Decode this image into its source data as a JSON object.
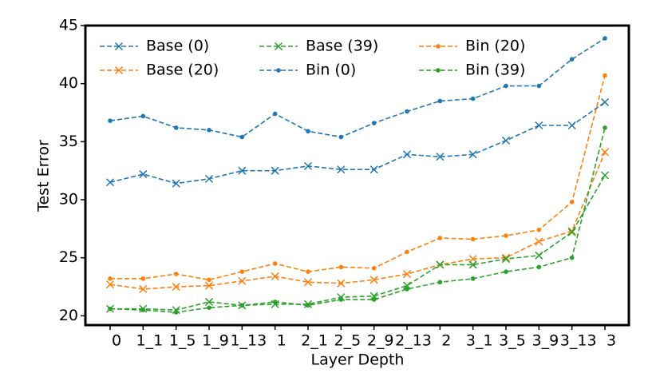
{
  "chart_data": {
    "type": "line",
    "x_label": "Layer Depth",
    "y_label": "Test Error",
    "categories": [
      "0",
      "1_1",
      "1_5",
      "1_9",
      "1_13",
      "1",
      "2_1",
      "2_5",
      "2_9",
      "2_13",
      "2",
      "3_1",
      "3_5",
      "3_9",
      "3_13",
      "3"
    ],
    "ylim": [
      19.2,
      45
    ],
    "yticks": [
      20,
      25,
      30,
      35,
      40,
      45
    ],
    "legend": "upper left",
    "series": [
      {
        "name": "Base (0)",
        "color": "#1f77b4",
        "marker": "x",
        "values": [
          31.5,
          32.2,
          31.4,
          31.8,
          32.5,
          32.5,
          32.9,
          32.6,
          32.6,
          33.9,
          33.7,
          33.9,
          35.1,
          36.4,
          36.4,
          38.4
        ]
      },
      {
        "name": "Base (20)",
        "color": "#ff7f0e",
        "marker": "x",
        "values": [
          22.7,
          22.3,
          22.5,
          22.6,
          23.0,
          23.4,
          22.9,
          22.8,
          23.1,
          23.6,
          24.4,
          24.9,
          25.0,
          26.4,
          27.3,
          34.1
        ]
      },
      {
        "name": "Base (39)",
        "color": "#2ca02c",
        "marker": "x",
        "values": [
          20.6,
          20.6,
          20.5,
          21.2,
          20.9,
          21.0,
          21.0,
          21.6,
          21.7,
          22.6,
          24.4,
          24.4,
          24.9,
          25.2,
          27.2,
          32.1
        ]
      },
      {
        "name": "Bin (0)",
        "color": "#1f77b4",
        "marker": "dot",
        "values": [
          36.8,
          37.2,
          36.2,
          36.0,
          35.4,
          37.4,
          35.9,
          35.4,
          36.6,
          37.6,
          38.5,
          38.7,
          39.8,
          39.8,
          42.1,
          43.9
        ]
      },
      {
        "name": "Bin (20)",
        "color": "#ff7f0e",
        "marker": "dot",
        "values": [
          23.2,
          23.2,
          23.6,
          23.1,
          23.8,
          24.5,
          23.8,
          24.2,
          24.1,
          25.5,
          26.7,
          26.6,
          26.9,
          27.4,
          29.8,
          40.7
        ]
      },
      {
        "name": "Bin (39)",
        "color": "#2ca02c",
        "marker": "dot",
        "values": [
          20.6,
          20.5,
          20.3,
          20.7,
          20.9,
          21.2,
          20.9,
          21.4,
          21.4,
          22.3,
          22.9,
          23.2,
          23.8,
          24.2,
          25.0,
          36.2
        ]
      }
    ]
  }
}
